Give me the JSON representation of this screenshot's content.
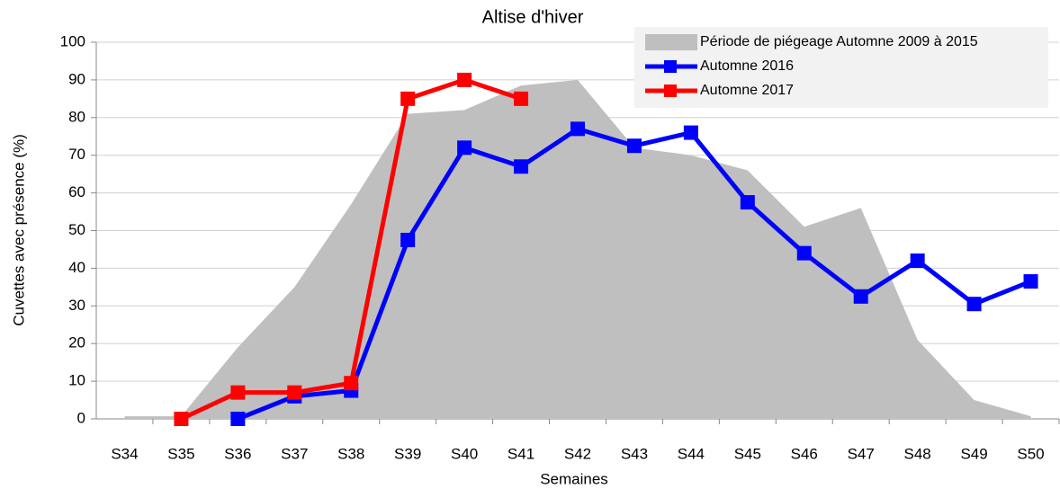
{
  "chart_data": {
    "type": "line",
    "title": "Altise d'hiver",
    "x_label": "Semaines",
    "y_label": "Cuvettes avec présence (%)",
    "categories": [
      "S34",
      "S35",
      "S36",
      "S37",
      "S38",
      "S39",
      "S40",
      "S41",
      "S42",
      "S43",
      "S44",
      "S45",
      "S46",
      "S47",
      "S48",
      "S49",
      "S50"
    ],
    "series": [
      {
        "name": "Période de piégeage Automne 2009 à 2015",
        "type": "area",
        "color": "#bfbfbf",
        "values": [
          0.7,
          0.7,
          19,
          35,
          57,
          81,
          82,
          88.5,
          90,
          72,
          70,
          66,
          51,
          56,
          21,
          5,
          0.7
        ]
      },
      {
        "name": "Automne 2016",
        "type": "line",
        "color": "#0000ff",
        "values": [
          null,
          null,
          0,
          6,
          7.5,
          47.5,
          72,
          67,
          77,
          72.5,
          76,
          57.5,
          44,
          32.5,
          42,
          30.5,
          36.5
        ]
      },
      {
        "name": "Automne 2017",
        "type": "line",
        "color": "#ff0000",
        "values": [
          null,
          0,
          7,
          7,
          9.5,
          85,
          90,
          85,
          null,
          null,
          null,
          null,
          null,
          null,
          null,
          null,
          null
        ]
      }
    ],
    "ylim": [
      0,
      100
    ],
    "yticks": [
      0,
      10,
      20,
      30,
      40,
      50,
      60,
      70,
      80,
      90,
      100
    ],
    "grid": true,
    "legend": "top-right"
  }
}
